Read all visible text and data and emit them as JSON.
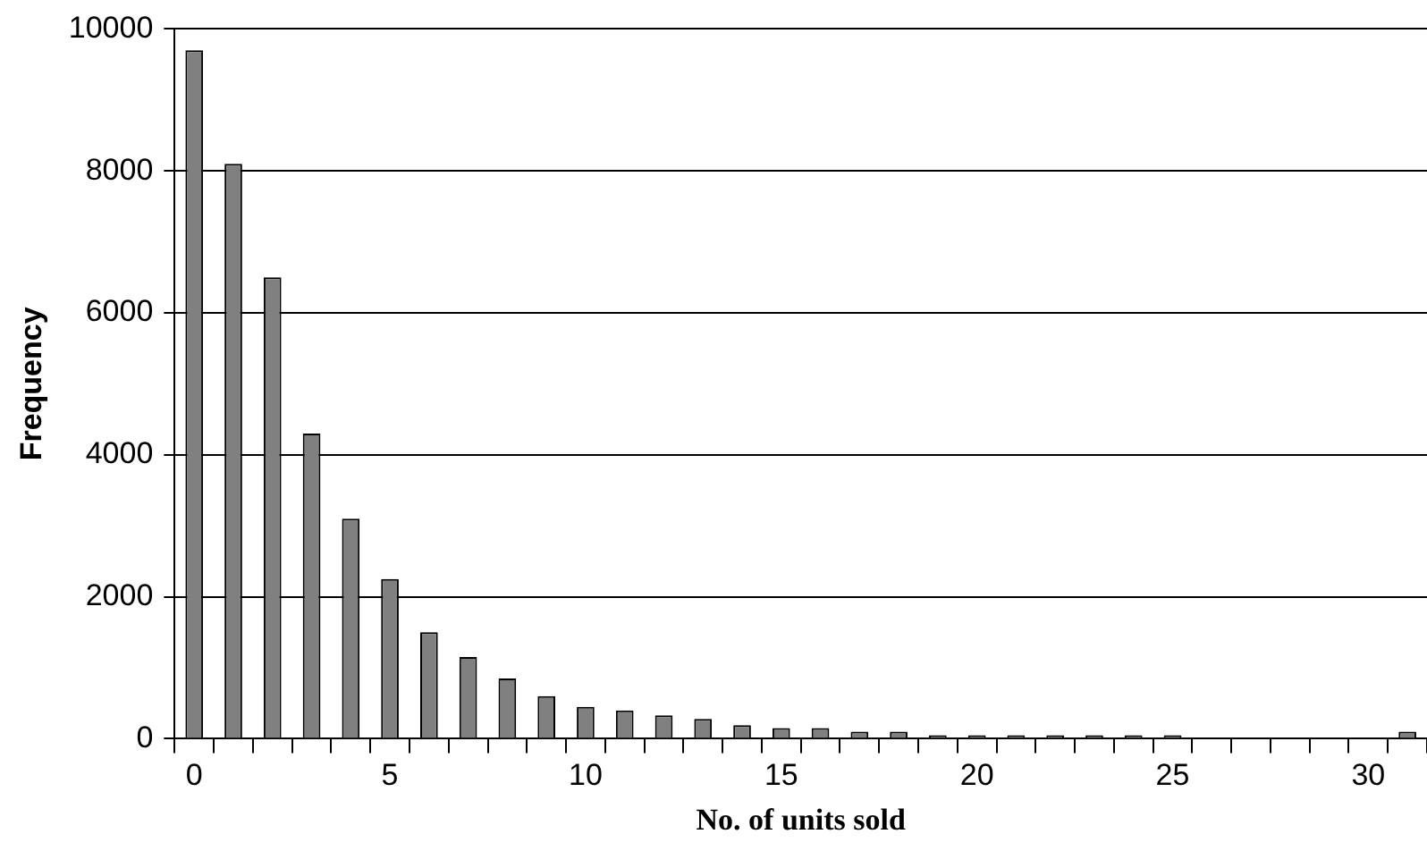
{
  "chart_data": {
    "type": "bar",
    "xlabel": "No. of units sold",
    "ylabel": "Frequency",
    "categories": [
      "0",
      null,
      null,
      null,
      null,
      "5",
      null,
      null,
      null,
      null,
      "10",
      null,
      null,
      null,
      null,
      "15",
      null,
      null,
      null,
      null,
      "20",
      null,
      null,
      null,
      null,
      "25",
      null,
      null,
      null,
      null,
      "30",
      null
    ],
    "values": [
      9700,
      8100,
      6500,
      4300,
      3100,
      2250,
      1500,
      1150,
      850,
      600,
      450,
      400,
      330,
      280,
      190,
      150,
      150,
      100,
      100,
      50,
      50,
      50,
      50,
      50,
      50,
      50,
      0,
      0,
      0,
      0,
      0,
      100
    ],
    "color": "#808080",
    "ylim": [
      0,
      10000
    ],
    "yticks": [
      0,
      2000,
      4000,
      6000,
      8000,
      10000
    ],
    "grid": "y",
    "legend": false
  }
}
